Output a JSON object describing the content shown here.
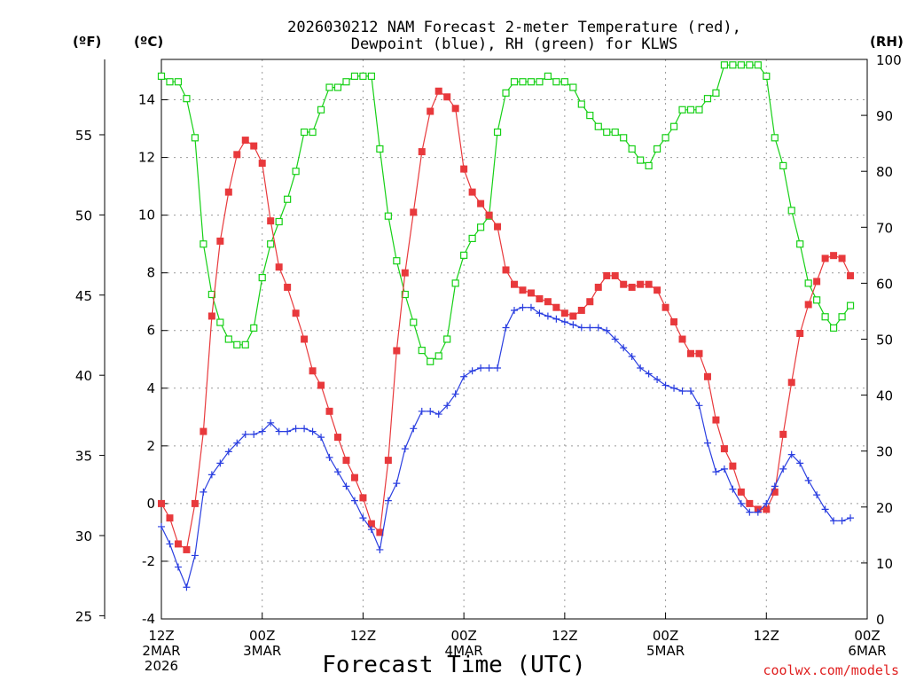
{
  "colors": {
    "temp": "#e8393c",
    "dew": "#2a3ee0",
    "rh": "#16d016",
    "credit": "#e02020"
  },
  "chart_data": {
    "type": "line",
    "title": "2026030212 NAM Forecast 2-meter Temperature (red),",
    "subtitle": "Dewpoint (blue), RH (green) for KLWS",
    "axes": {
      "left_f": {
        "label": "(ºF)",
        "range": [
          24.8,
          59.7
        ],
        "ticks": [
          "25",
          "30",
          "35",
          "40",
          "45",
          "50",
          "55"
        ]
      },
      "left_c": {
        "label": "(ºC)",
        "range": [
          -4,
          15.4
        ],
        "ticks": [
          "-4",
          "-2",
          "0",
          "2",
          "4",
          "6",
          "8",
          "10",
          "12",
          "14"
        ]
      },
      "right": {
        "label": "(RH)",
        "range": [
          0,
          100
        ],
        "ticks": [
          "0",
          "10",
          "20",
          "30",
          "40",
          "50",
          "60",
          "70",
          "80",
          "90",
          "100"
        ]
      }
    },
    "xlabel": "Forecast Time (UTC)",
    "x_range_hours": [
      0,
      84
    ],
    "x_ticks": [
      {
        "hour": 0,
        "lines": [
          "12Z",
          "2MAR",
          "2026"
        ]
      },
      {
        "hour": 12,
        "lines": [
          "00Z",
          "3MAR"
        ]
      },
      {
        "hour": 24,
        "lines": [
          "12Z"
        ]
      },
      {
        "hour": 36,
        "lines": [
          "00Z",
          "4MAR"
        ]
      },
      {
        "hour": 48,
        "lines": [
          "12Z"
        ]
      },
      {
        "hour": 60,
        "lines": [
          "00Z",
          "5MAR"
        ]
      },
      {
        "hour": 72,
        "lines": [
          "12Z"
        ]
      },
      {
        "hour": 84,
        "lines": [
          "00Z",
          "6MAR"
        ]
      }
    ],
    "series": [
      {
        "name": "2-meter Temperature",
        "unit": "C",
        "color": "temp",
        "marker": "filled-square",
        "values": [
          0.0,
          -0.5,
          -1.4,
          -1.6,
          0.0,
          2.5,
          6.5,
          9.1,
          10.8,
          12.1,
          12.6,
          12.4,
          11.8,
          9.8,
          8.2,
          7.5,
          6.6,
          5.7,
          4.6,
          4.1,
          3.2,
          2.3,
          1.5,
          0.9,
          0.2,
          -0.7,
          -1.0,
          1.5,
          5.3,
          8.0,
          10.1,
          12.2,
          13.6,
          14.3,
          14.1,
          13.7,
          11.6,
          10.8,
          10.4,
          10.0,
          9.6,
          8.1,
          7.6,
          7.4,
          7.3,
          7.1,
          7.0,
          6.8,
          6.6,
          6.5,
          6.7,
          7.0,
          7.5,
          7.9,
          7.9,
          7.6,
          7.5,
          7.6,
          7.6,
          7.4,
          6.8,
          6.3,
          5.7,
          5.2,
          5.2,
          4.4,
          2.9,
          1.9,
          1.3,
          0.4,
          0.0,
          -0.2,
          -0.2,
          0.4,
          2.4,
          4.2,
          5.9,
          6.9,
          7.7,
          8.5,
          8.6,
          8.5,
          7.9
        ]
      },
      {
        "name": "Dewpoint",
        "unit": "C",
        "color": "dew",
        "marker": "plus",
        "values": [
          -0.8,
          -1.4,
          -2.2,
          -2.9,
          -1.8,
          0.4,
          1.0,
          1.4,
          1.8,
          2.1,
          2.4,
          2.4,
          2.5,
          2.8,
          2.5,
          2.5,
          2.6,
          2.6,
          2.5,
          2.3,
          1.6,
          1.1,
          0.6,
          0.1,
          -0.5,
          -0.9,
          -1.6,
          0.1,
          0.7,
          1.9,
          2.6,
          3.2,
          3.2,
          3.1,
          3.4,
          3.8,
          4.4,
          4.6,
          4.7,
          4.7,
          4.7,
          6.1,
          6.7,
          6.8,
          6.8,
          6.6,
          6.5,
          6.4,
          6.3,
          6.2,
          6.1,
          6.1,
          6.1,
          6.0,
          5.7,
          5.4,
          5.1,
          4.7,
          4.5,
          4.3,
          4.1,
          4.0,
          3.9,
          3.9,
          3.4,
          2.1,
          1.1,
          1.2,
          0.5,
          0.0,
          -0.3,
          -0.3,
          0.0,
          0.6,
          1.2,
          1.7,
          1.4,
          0.8,
          0.3,
          -0.2,
          -0.6,
          -0.6,
          -0.5
        ]
      },
      {
        "name": "RH",
        "unit": "%",
        "color": "rh",
        "marker": "open-square",
        "values": [
          97,
          96,
          96,
          93,
          86,
          67,
          58,
          53,
          50,
          49,
          49,
          52,
          61,
          67,
          71,
          75,
          80,
          87,
          87,
          91,
          95,
          95,
          96,
          97,
          97,
          97,
          84,
          72,
          64,
          58,
          53,
          48,
          46,
          47,
          50,
          60,
          65,
          68,
          70,
          72,
          87,
          94,
          96,
          96,
          96,
          96,
          97,
          96,
          96,
          95,
          92,
          90,
          88,
          87,
          87,
          86,
          84,
          82,
          81,
          84,
          86,
          88,
          91,
          91,
          91,
          93,
          94,
          99,
          99,
          99,
          99,
          99,
          97,
          86,
          81,
          73,
          67,
          60,
          57,
          54,
          52,
          54,
          56
        ]
      }
    ]
  },
  "footer": {
    "credit": "coolwx.com/models"
  }
}
